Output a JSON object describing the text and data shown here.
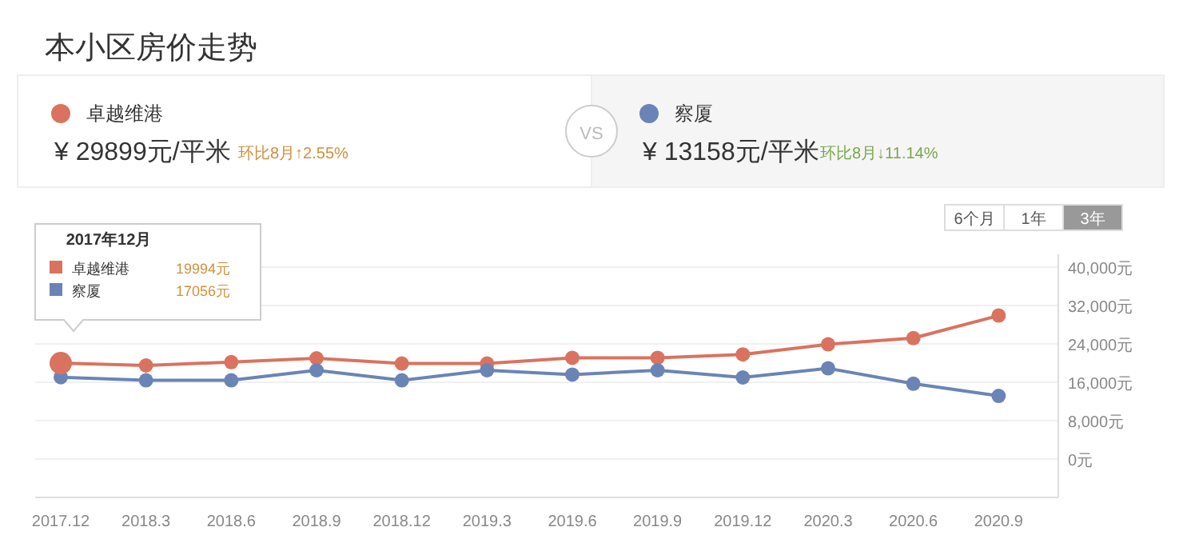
{
  "chart_data": {
    "type": "line",
    "title": "本小区房价走势",
    "categories": [
      "2017.12",
      "2018.3",
      "2018.6",
      "2018.9",
      "2018.12",
      "2019.3",
      "2019.6",
      "2019.9",
      "2019.12",
      "2020.3",
      "2020.6",
      "2020.9"
    ],
    "series": [
      {
        "name": "卓越维港",
        "color": "#d9735f",
        "values": [
          19994,
          19500,
          20200,
          21000,
          19900,
          19900,
          21100,
          21100,
          21800,
          23900,
          25200,
          29899
        ]
      },
      {
        "name": "察厦",
        "color": "#6b84b6",
        "values": [
          17056,
          16400,
          16400,
          18500,
          16400,
          18500,
          17600,
          18500,
          17000,
          18900,
          15700,
          13158
        ]
      }
    ],
    "ylim": [
      -8000,
      40000
    ],
    "yticks": [
      {
        "value": 0,
        "label": "0元"
      },
      {
        "value": 8000,
        "label": "8,000元"
      },
      {
        "value": 16000,
        "label": "16,000元"
      },
      {
        "value": 24000,
        "label": "24,000元"
      },
      {
        "value": 32000,
        "label": "32,000元"
      },
      {
        "value": 40000,
        "label": "40,000元"
      }
    ],
    "grid": "y",
    "legend": "top",
    "marker": "circle",
    "line_style": "solid",
    "annotations": [
      "¥ 29899元/平米",
      "环比8月↑2.55%",
      "VS",
      "¥ 13158元/平米",
      "环比8月↓11.14%",
      "6个月",
      "1年",
      "3年",
      "2017年12月",
      "19994元",
      "17056元"
    ]
  }
}
